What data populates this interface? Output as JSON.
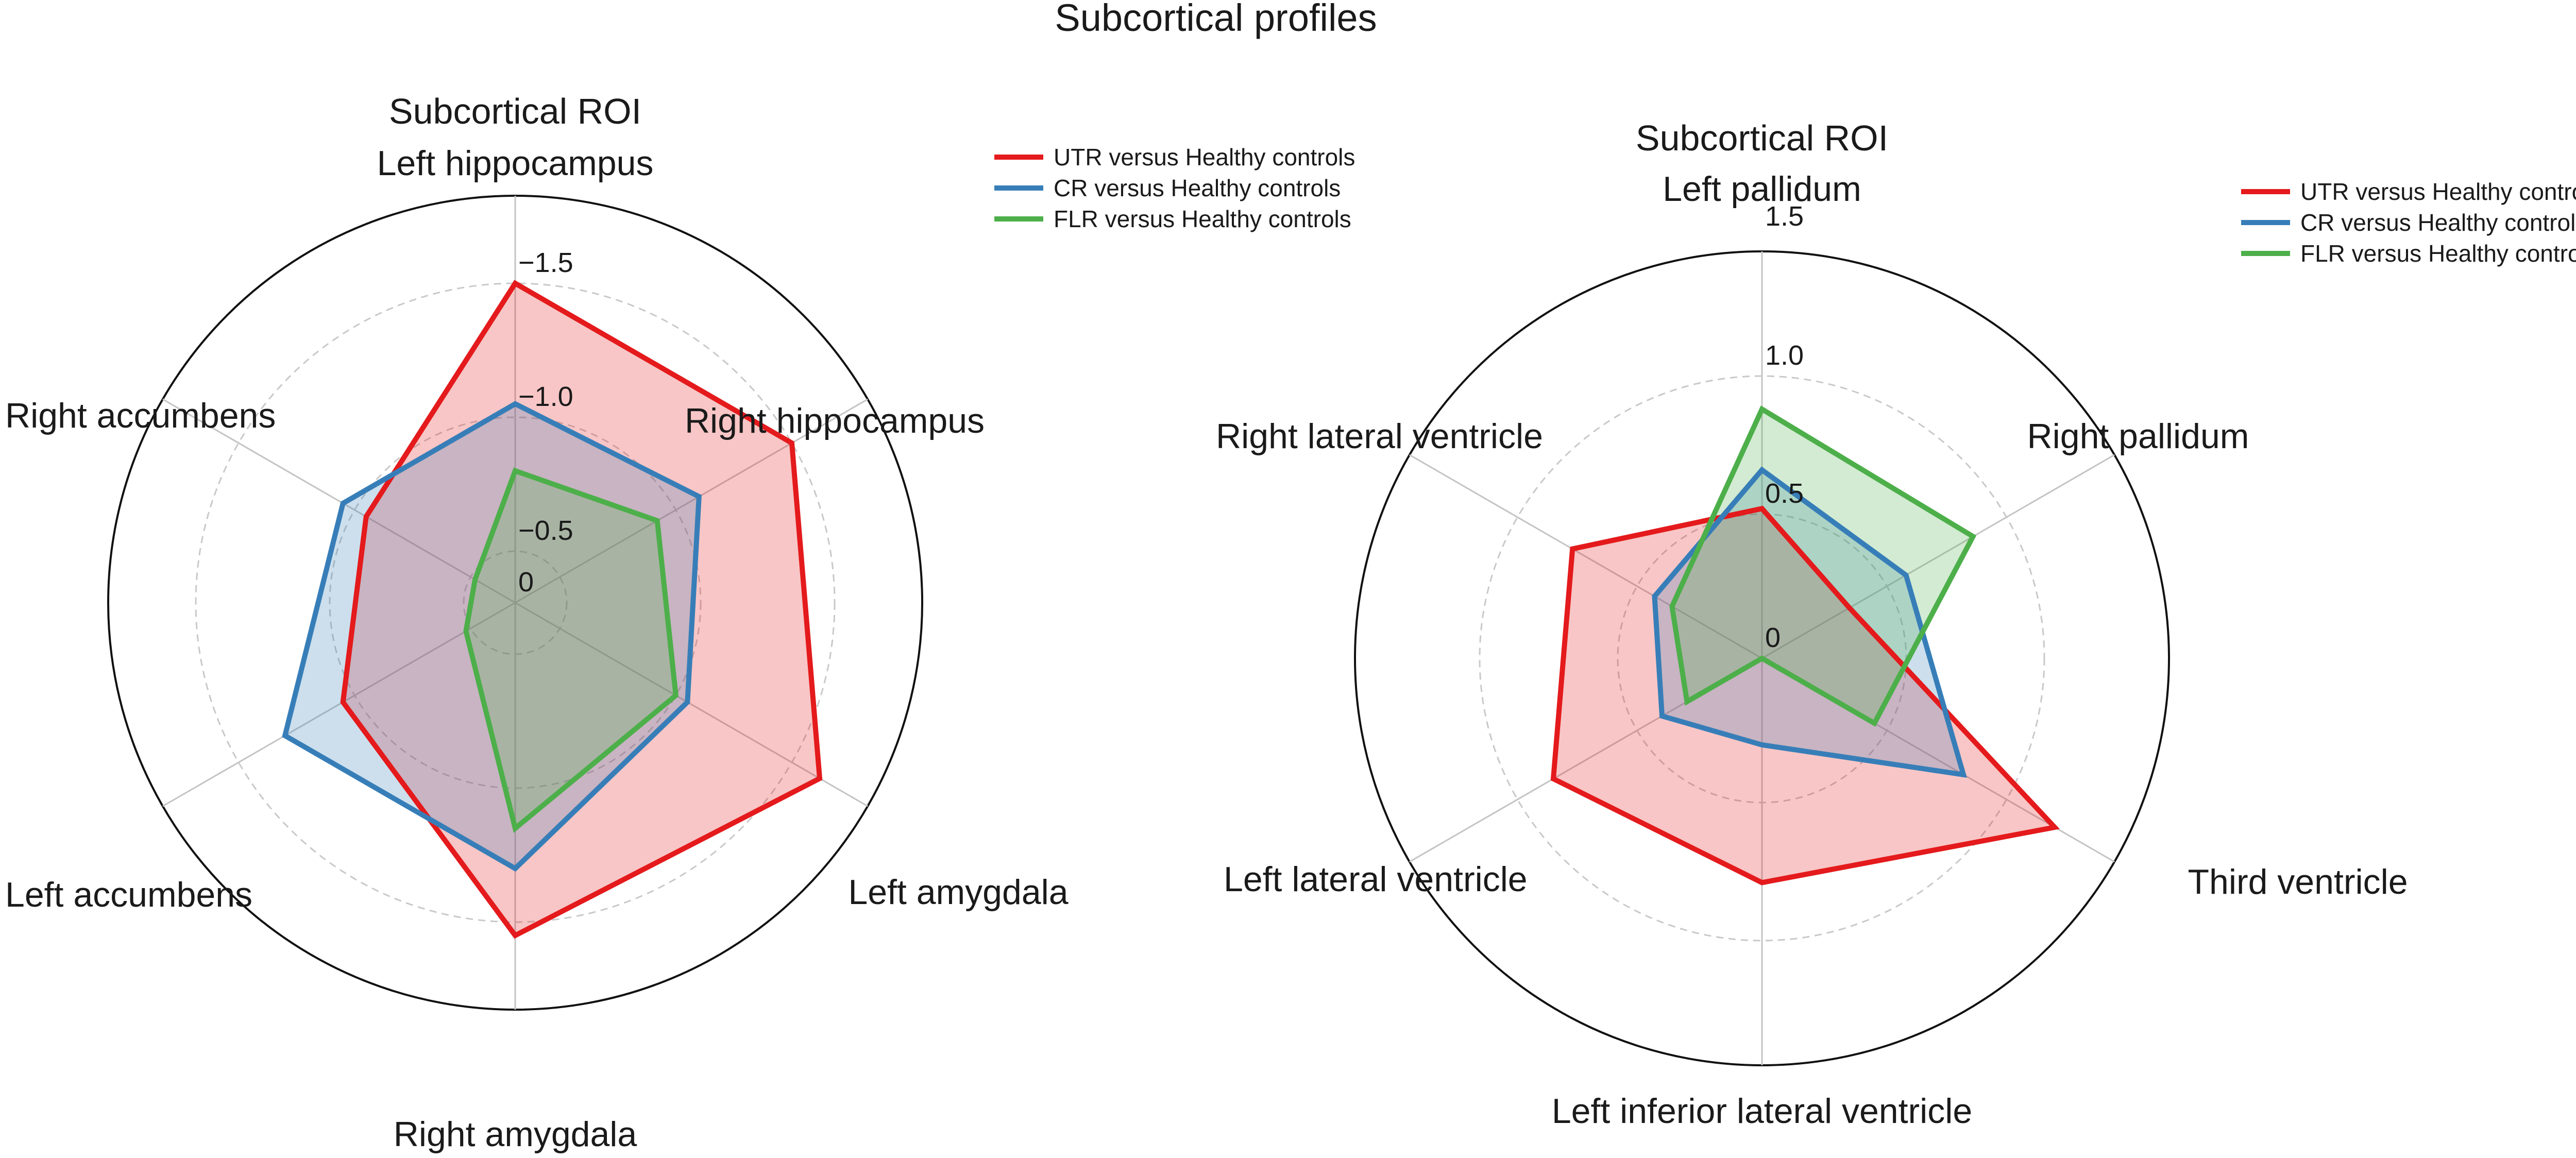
{
  "figure": {
    "title": "Subcortical profiles"
  },
  "chart_data": [
    {
      "type": "radar",
      "title": "Subcortical ROI",
      "axes": [
        "Left hippocampus",
        "Right hippocampus",
        "Left amygdala",
        "Right amygdala",
        "Left accumbens",
        "Right accumbens"
      ],
      "radial_range": [
        0,
        -1.5
      ],
      "radial_ticks": [
        0,
        -0.5,
        -1.0,
        -1.5
      ],
      "radial_tick_labels": [
        "0",
        "−0.5",
        "−1.0",
        "−1.5"
      ],
      "grid": true,
      "legend_position": "top-right",
      "series": [
        {
          "name": "UTR versus Healthy controls",
          "color": "#e41a1c",
          "fill_opacity": 0.25,
          "values": [
            -1.5,
            -1.5,
            -1.62,
            -1.55,
            -1.05,
            -0.95
          ]
        },
        {
          "name": "CR versus Healthy controls",
          "color": "#377eb8",
          "fill_opacity": 0.25,
          "values": [
            -1.05,
            -1.1,
            -1.05,
            -1.3,
            -1.3,
            -1.05
          ]
        },
        {
          "name": "FLR versus Healthy controls",
          "color": "#4daf4a",
          "fill_opacity": 0.25,
          "values": [
            -0.8,
            -0.92,
            -1.0,
            -1.15,
            -0.52,
            -0.45
          ]
        }
      ]
    },
    {
      "type": "radar",
      "title": "Subcortical ROI",
      "axes": [
        "Left pallidum",
        "Right pallidum",
        "Third ventricle",
        "Left inferior lateral ventricle",
        "Left lateral ventricle",
        "Right lateral ventricle"
      ],
      "radial_range": [
        0,
        1.5
      ],
      "radial_ticks": [
        0,
        0.5,
        1.0,
        1.5
      ],
      "radial_tick_labels": [
        "0",
        "0.5",
        "1.0",
        "1.5"
      ],
      "grid": true,
      "legend_position": "top-right",
      "series": [
        {
          "name": "UTR versus Healthy controls",
          "color": "#e41a1c",
          "fill_opacity": 0.25,
          "values": [
            0.52,
            0.35,
            1.2,
            0.79,
            0.85,
            0.77
          ]
        },
        {
          "name": "CR versus Healthy controls",
          "color": "#377eb8",
          "fill_opacity": 0.25,
          "values": [
            0.66,
            0.58,
            0.82,
            0.3,
            0.4,
            0.43
          ]
        },
        {
          "name": "FLR versus Healthy controls",
          "color": "#4daf4a",
          "fill_opacity": 0.25,
          "values": [
            0.88,
            0.86,
            0.45,
            0.0,
            0.3,
            0.36
          ]
        }
      ]
    }
  ]
}
